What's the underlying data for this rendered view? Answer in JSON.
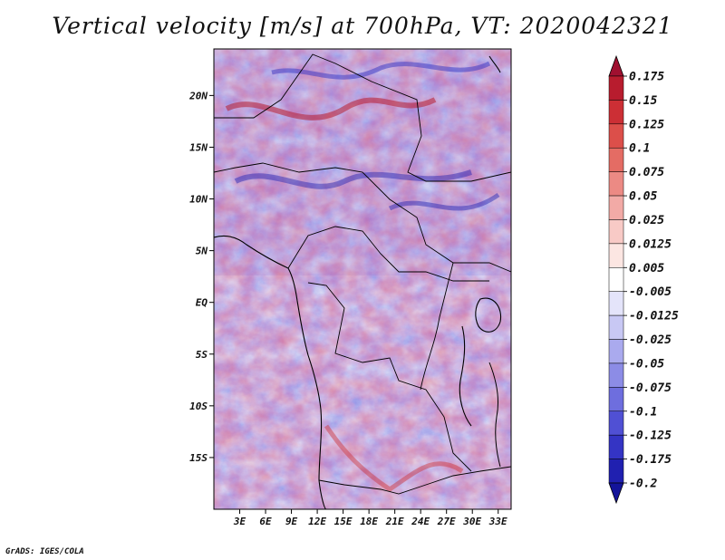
{
  "title": "Vertical velocity [m/s] at 700hPa, VT: 2020042321",
  "credit": "GrADS: IGES/COLA",
  "map": {
    "region": "Central Africa",
    "variable": "Vertical velocity",
    "units": "m/s",
    "level": "700hPa",
    "valid_time": "2020042321",
    "lat_labels": [
      "20N",
      "15N",
      "10N",
      "5N",
      "EQ",
      "5S",
      "10S",
      "15S"
    ],
    "lat_values": [
      20,
      15,
      10,
      5,
      0,
      -5,
      -10,
      -15
    ],
    "lon_labels": [
      "3E",
      "6E",
      "9E",
      "12E",
      "15E",
      "18E",
      "21E",
      "24E",
      "27E",
      "30E",
      "33E"
    ],
    "lon_values": [
      3,
      6,
      9,
      12,
      15,
      18,
      21,
      24,
      27,
      30,
      33
    ],
    "lat_range": [
      -20,
      24.5
    ],
    "lon_range": [
      0,
      34.5
    ]
  },
  "colorbar": {
    "labels": [
      "0.175",
      "0.15",
      "0.125",
      "0.1",
      "0.075",
      "0.05",
      "0.025",
      "0.0125",
      "0.005",
      "-0.005",
      "-0.0125",
      "-0.025",
      "-0.05",
      "-0.075",
      "-0.1",
      "-0.125",
      "-0.175",
      "-0.2"
    ],
    "colors": [
      "#a01030",
      "#b81c2e",
      "#cc2f35",
      "#dc4f4a",
      "#e46c64",
      "#ec8a84",
      "#f2aaa6",
      "#f8cac6",
      "#fce6e2",
      "#ffffff",
      "#e4e4fa",
      "#c8c8f4",
      "#aaaaee",
      "#8c8ce6",
      "#6e6ede",
      "#5050d4",
      "#3434c4",
      "#2020b0",
      "#14149a"
    ]
  }
}
